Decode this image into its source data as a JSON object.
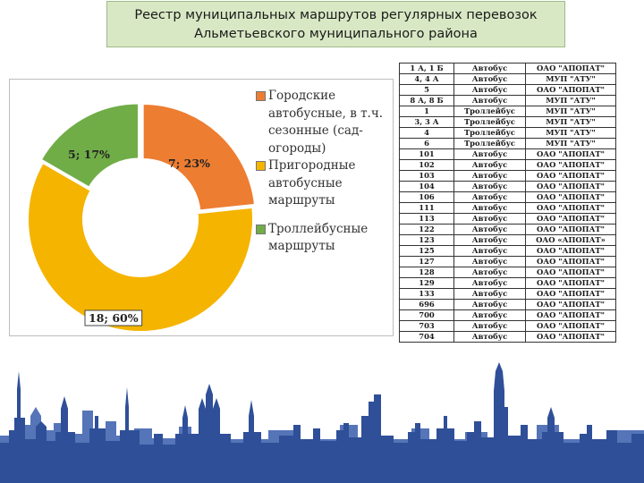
{
  "title": {
    "line1": "Реестр муниципальных маршрутов регулярных перевозок",
    "line2": "Альметьевского муниципального района"
  },
  "chart_data": {
    "type": "pie",
    "subtype": "donut",
    "series": [
      {
        "label": "Городские автобусные, в т.ч. сезонные (сад-огороды)",
        "value": 7,
        "percent": 23,
        "data_label": "7; 23%",
        "color": "#ed7d31"
      },
      {
        "label": "Пригородные автобусные маршруты",
        "value": 18,
        "percent": 60,
        "data_label": "18; 60%",
        "color": "#f5b400"
      },
      {
        "label": "Троллейбусные маршруты",
        "value": 5,
        "percent": 17,
        "data_label": "5; 17%",
        "color": "#70ad47"
      }
    ],
    "legend": {
      "position": "right",
      "lines": [
        [
          "Городские",
          "автобусные, в т.ч.",
          "сезонные (сад-",
          "огороды)"
        ],
        [
          "Пригородные",
          "автобусные",
          "маршруты"
        ],
        [
          "Троллейбусные",
          "маршруты"
        ]
      ]
    }
  },
  "colors": {
    "title_bg": "#d8e8c4",
    "skyline": "#2f4f98",
    "skyline_light": "#5575b8"
  },
  "routes": [
    [
      "1 А, 1 Б",
      "Автобус",
      "ОАО \"АПОПАТ\""
    ],
    [
      "4, 4 А",
      "Автобус",
      "МУП \"АТУ\""
    ],
    [
      "5",
      "Автобус",
      "ОАО \"АПОПАТ\""
    ],
    [
      "8 А, 8 Б",
      "Автобус",
      "МУП \"АТУ\""
    ],
    [
      "1",
      "Троллейбус",
      "МУП \"АТУ\""
    ],
    [
      "3, 3 А",
      "Троллейбус",
      "МУП \"АТУ\""
    ],
    [
      "4",
      "Троллейбус",
      "МУП \"АТУ\""
    ],
    [
      "6",
      "Троллейбус",
      "МУП \"АТУ\""
    ],
    [
      "101",
      "Автобус",
      "ОАО \"АПОПАТ\""
    ],
    [
      "102",
      "Автобус",
      "ОАО \"АПОПАТ\""
    ],
    [
      "103",
      "Автобус",
      "ОАО \"АПОПАТ\""
    ],
    [
      "104",
      "Автобус",
      "ОАО \"АПОПАТ\""
    ],
    [
      "106",
      "Автобус",
      "ОАО \"АПОПАТ\""
    ],
    [
      "111",
      "Автобус",
      "ОАО \"АПОПАТ\""
    ],
    [
      "113",
      "Автобус",
      "ОАО \"АПОПАТ\""
    ],
    [
      "122",
      "Автобус",
      "ОАО \"АПОПАТ\""
    ],
    [
      "123",
      "Автобус",
      "ОАО «АПОПАТ»"
    ],
    [
      "125",
      "Автобус",
      "ОАО \"АПОПАТ\""
    ],
    [
      "127",
      "Автобус",
      "ОАО \"АПОПАТ\""
    ],
    [
      "128",
      "Автобус",
      "ОАО \"АПОПАТ\""
    ],
    [
      "129",
      "Автобус",
      "ОАО \"АПОПАТ\""
    ],
    [
      "133",
      "Автобус",
      "ОАО \"АПОПАТ\""
    ],
    [
      "696",
      "Автобус",
      "ОАО \"АПОПАТ\""
    ],
    [
      "700",
      "Автобус",
      "ОАО \"АПОПАТ\""
    ],
    [
      "703",
      "Автобус",
      "ОАО \"АПОПАТ\""
    ],
    [
      "704",
      "Автобус",
      "ОАО \"АПОПАТ\""
    ]
  ]
}
